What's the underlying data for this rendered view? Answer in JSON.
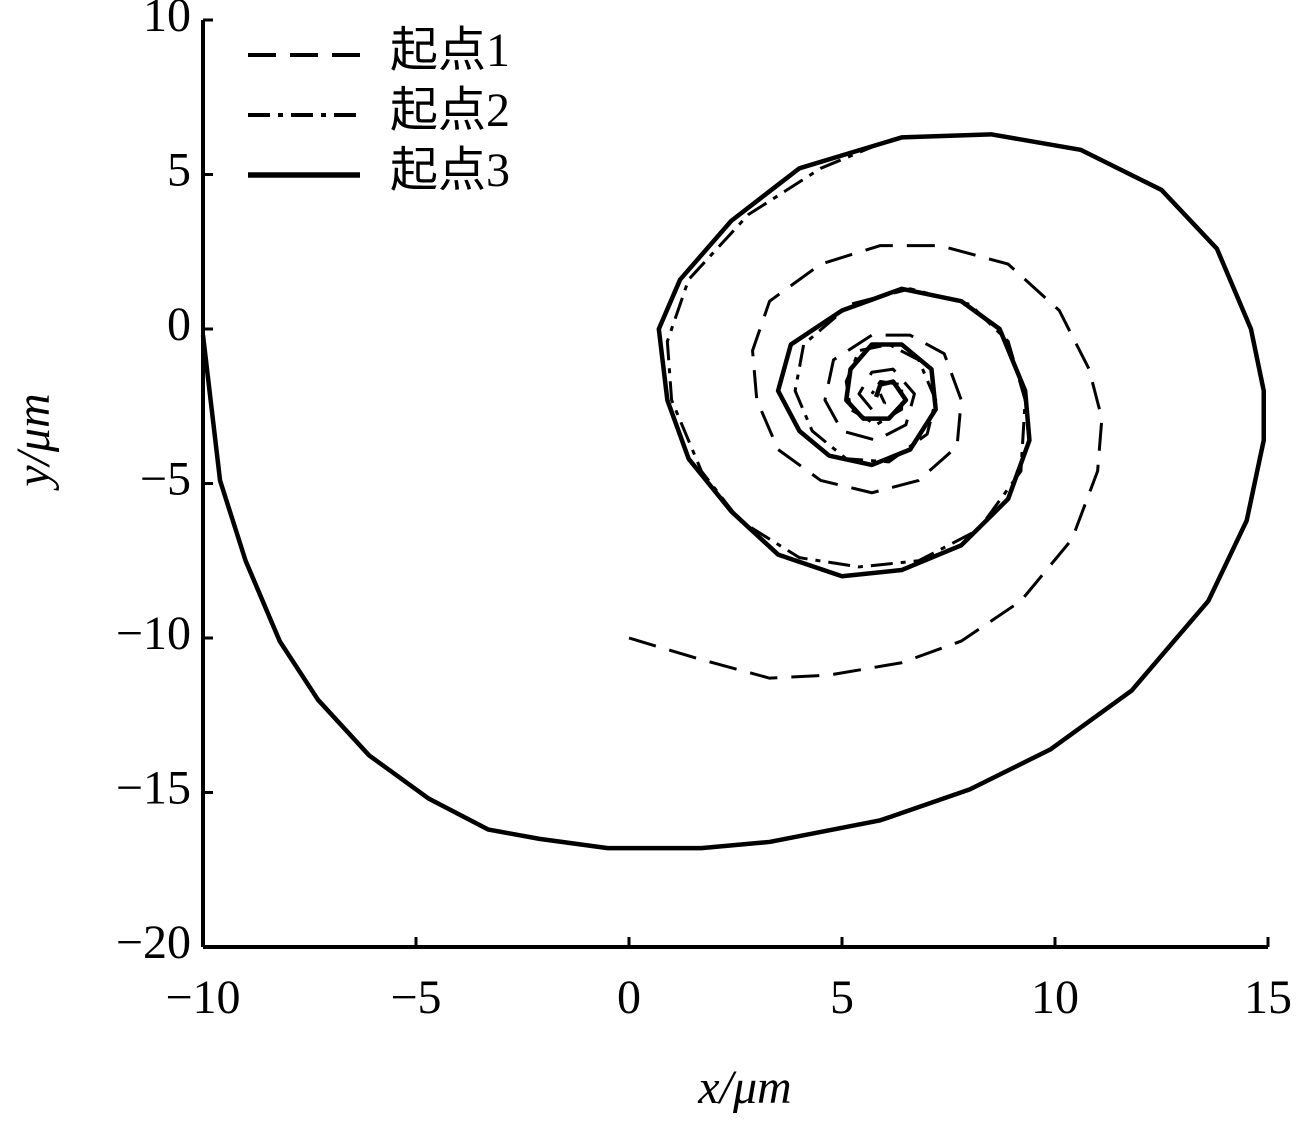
{
  "chart_data": {
    "type": "line",
    "xlabel": "x/μm",
    "ylabel": "y/μm",
    "xlim": [
      -10,
      15
    ],
    "ylim": [
      -20,
      10
    ],
    "xticks": [
      {
        "value": -10,
        "label": "−10"
      },
      {
        "value": -5,
        "label": "−5"
      },
      0,
      5,
      10,
      15
    ],
    "yticks": [
      {
        "value": -20,
        "label": "−20"
      },
      {
        "value": -15,
        "label": "−15"
      },
      {
        "value": -10,
        "label": "−10"
      },
      {
        "value": -5,
        "label": "−5"
      },
      0,
      5,
      10
    ],
    "legend": "upper left",
    "series": [
      {
        "name": "起点1",
        "color": "#000000",
        "dash": "dashed",
        "x": [
          0,
          1.7,
          3.3,
          4.7,
          6.4,
          7.8,
          9.2,
          10.4,
          11.0,
          11.1,
          10.8,
          10.1,
          8.9,
          7.3,
          5.9,
          4.5,
          3.3,
          2.9,
          3.0,
          3.5,
          4.5,
          5.7,
          6.8,
          7.7,
          7.8,
          7.4,
          6.6,
          5.7,
          4.8,
          4.6,
          5.0,
          5.8,
          6.5,
          6.7,
          6.2,
          5.7,
          5.4,
          5.7,
          6.0,
          5.9
        ],
        "values": [
          -10.0,
          -10.7,
          -11.3,
          -11.2,
          -10.8,
          -10.1,
          -8.8,
          -6.8,
          -4.6,
          -2.9,
          -1.3,
          0.6,
          2.1,
          2.7,
          2.7,
          2.1,
          0.9,
          -0.7,
          -2.3,
          -3.9,
          -4.9,
          -5.3,
          -4.9,
          -3.8,
          -2.3,
          -0.8,
          -0.2,
          -0.2,
          -1.0,
          -2.3,
          -3.3,
          -3.6,
          -3.1,
          -2.1,
          -1.3,
          -1.4,
          -2.1,
          -2.6,
          -2.4,
          -2.1
        ]
      },
      {
        "name": "起点2",
        "color": "#000000",
        "dash": "dashdot",
        "x": [
          5.9,
          4.5,
          2.8,
          1.4,
          0.9,
          1.0,
          1.7,
          2.6,
          4.0,
          5.4,
          6.8,
          8.2,
          9.2,
          9.3,
          8.9,
          8.0,
          6.6,
          5.2,
          4.1,
          3.9,
          4.3,
          5.1,
          6.1,
          7.0,
          7.2,
          6.8,
          6.1,
          5.4,
          5.1,
          5.2,
          5.8,
          6.4,
          6.4,
          5.9,
          5.7
        ],
        "values": [
          6.0,
          5.2,
          3.7,
          1.6,
          -0.4,
          -2.3,
          -4.6,
          -6.2,
          -7.4,
          -7.7,
          -7.5,
          -6.5,
          -4.6,
          -2.3,
          -0.4,
          0.8,
          1.3,
          0.8,
          -0.5,
          -2.0,
          -3.3,
          -4.2,
          -4.3,
          -3.4,
          -2.3,
          -1.0,
          -0.5,
          -0.7,
          -1.7,
          -2.6,
          -3.1,
          -2.6,
          -1.8,
          -1.7,
          -2.1
        ]
      },
      {
        "name": "起点3",
        "color": "#000000",
        "dash": "solid",
        "x": [
          -10,
          -9.6,
          -9.0,
          -8.2,
          -7.3,
          -6.1,
          -4.7,
          -3.3,
          -2.1,
          -0.5,
          1.7,
          3.3,
          5.9,
          8.0,
          9.9,
          11.8,
          13.6,
          14.5,
          14.9,
          14.9,
          14.6,
          13.8,
          12.5,
          10.6,
          8.5,
          6.4,
          4.0,
          2.4,
          1.2,
          0.7,
          0.9,
          1.4,
          2.4,
          3.5,
          5.0,
          6.4,
          7.8,
          8.9,
          9.4,
          9.3,
          8.7,
          7.8,
          6.4,
          5.0,
          3.8,
          3.5,
          4.0,
          4.7,
          5.7,
          6.6,
          7.2,
          7.1,
          6.4,
          5.7,
          5.2,
          5.1,
          5.5,
          6.1,
          6.5,
          6.2,
          5.9,
          5.8
        ],
        "values": [
          -0.2,
          -4.9,
          -7.5,
          -10.1,
          -12.0,
          -13.8,
          -15.2,
          -16.2,
          -16.5,
          -16.8,
          -16.8,
          -16.6,
          -15.9,
          -14.9,
          -13.6,
          -11.7,
          -8.8,
          -6.2,
          -3.6,
          -2.0,
          0.0,
          2.6,
          4.5,
          5.8,
          6.3,
          6.2,
          5.2,
          3.5,
          1.6,
          0.0,
          -2.3,
          -4.2,
          -5.9,
          -7.3,
          -8.0,
          -7.8,
          -7.0,
          -5.5,
          -3.6,
          -2.0,
          0.0,
          0.9,
          1.3,
          0.6,
          -0.5,
          -2.0,
          -3.3,
          -4.1,
          -4.4,
          -3.9,
          -2.6,
          -1.3,
          -0.5,
          -0.5,
          -1.3,
          -2.3,
          -2.9,
          -2.9,
          -2.3,
          -1.7,
          -1.8,
          -2.2
        ]
      }
    ]
  }
}
